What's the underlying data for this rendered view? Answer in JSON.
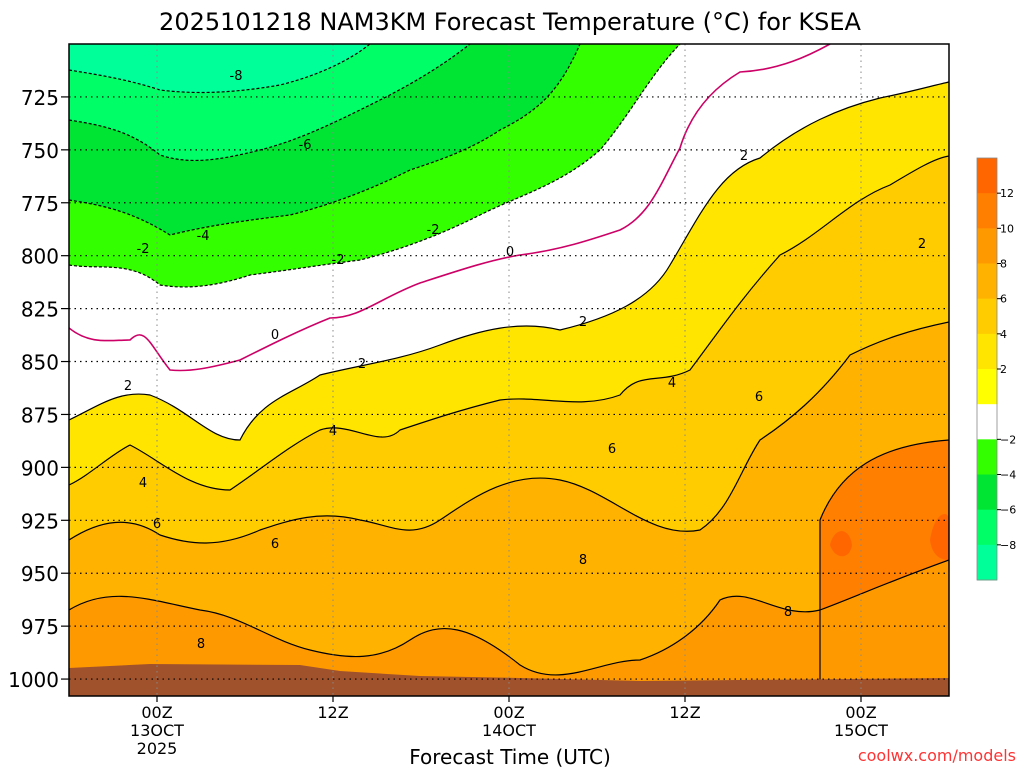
{
  "chart_data": {
    "type": "heatmap",
    "title": "2025101218 NAM3KM Forecast Temperature (°C) for KSEA",
    "xlabel": "Forecast Time (UTC)",
    "ylabel": "",
    "watermark": "coolwx.com/models",
    "x_ticks": [
      {
        "label": "00Z",
        "sub": [
          "13OCT",
          "2025"
        ],
        "hour": 6
      },
      {
        "label": "12Z",
        "sub": [],
        "hour": 18
      },
      {
        "label": "00Z",
        "sub": [
          "14OCT"
        ],
        "hour": 30
      },
      {
        "label": "12Z",
        "sub": [],
        "hour": 42
      },
      {
        "label": "00Z",
        "sub": [
          "15OCT"
        ],
        "hour": 54
      }
    ],
    "xlim_hours": [
      0,
      60
    ],
    "y_ticks": [
      725,
      750,
      775,
      800,
      825,
      850,
      875,
      900,
      925,
      950,
      975,
      1000
    ],
    "ylim_hpa": [
      700,
      1008
    ],
    "colorbar": {
      "labels": [
        "12",
        "10",
        "8",
        "6",
        "4",
        "2",
        "−2",
        "−4",
        "−6",
        "−8"
      ],
      "bins": [
        {
          "range": "12 to 14",
          "color": "#ff6600"
        },
        {
          "range": "10 to 12",
          "color": "#ff7f00"
        },
        {
          "range": "8 to 10",
          "color": "#ff9900"
        },
        {
          "range": "6 to 8",
          "color": "#ffb200"
        },
        {
          "range": "4 to 6",
          "color": "#ffcc00"
        },
        {
          "range": "2 to 4",
          "color": "#ffe500"
        },
        {
          "range": "0 to 2",
          "color": "#ffff00"
        },
        {
          "range": "-2 to 2",
          "color": "#ffffff"
        },
        {
          "range": "-4 to -2",
          "color": "#33ff00"
        },
        {
          "range": "-6 to -4",
          "color": "#00e533"
        },
        {
          "range": "-8 to -6",
          "color": "#00ff66"
        },
        {
          "range": "-10 to -8",
          "color": "#00ff99"
        }
      ]
    },
    "contour_label_values": [
      "-8",
      "-6",
      "-4",
      "-2",
      "-2",
      "-2",
      "0",
      "0",
      "2",
      "2",
      "2",
      "2",
      "2",
      "4",
      "4",
      "4",
      "6",
      "6",
      "6",
      "6",
      "8",
      "8",
      "8"
    ],
    "ground_color": "#a0522d"
  }
}
